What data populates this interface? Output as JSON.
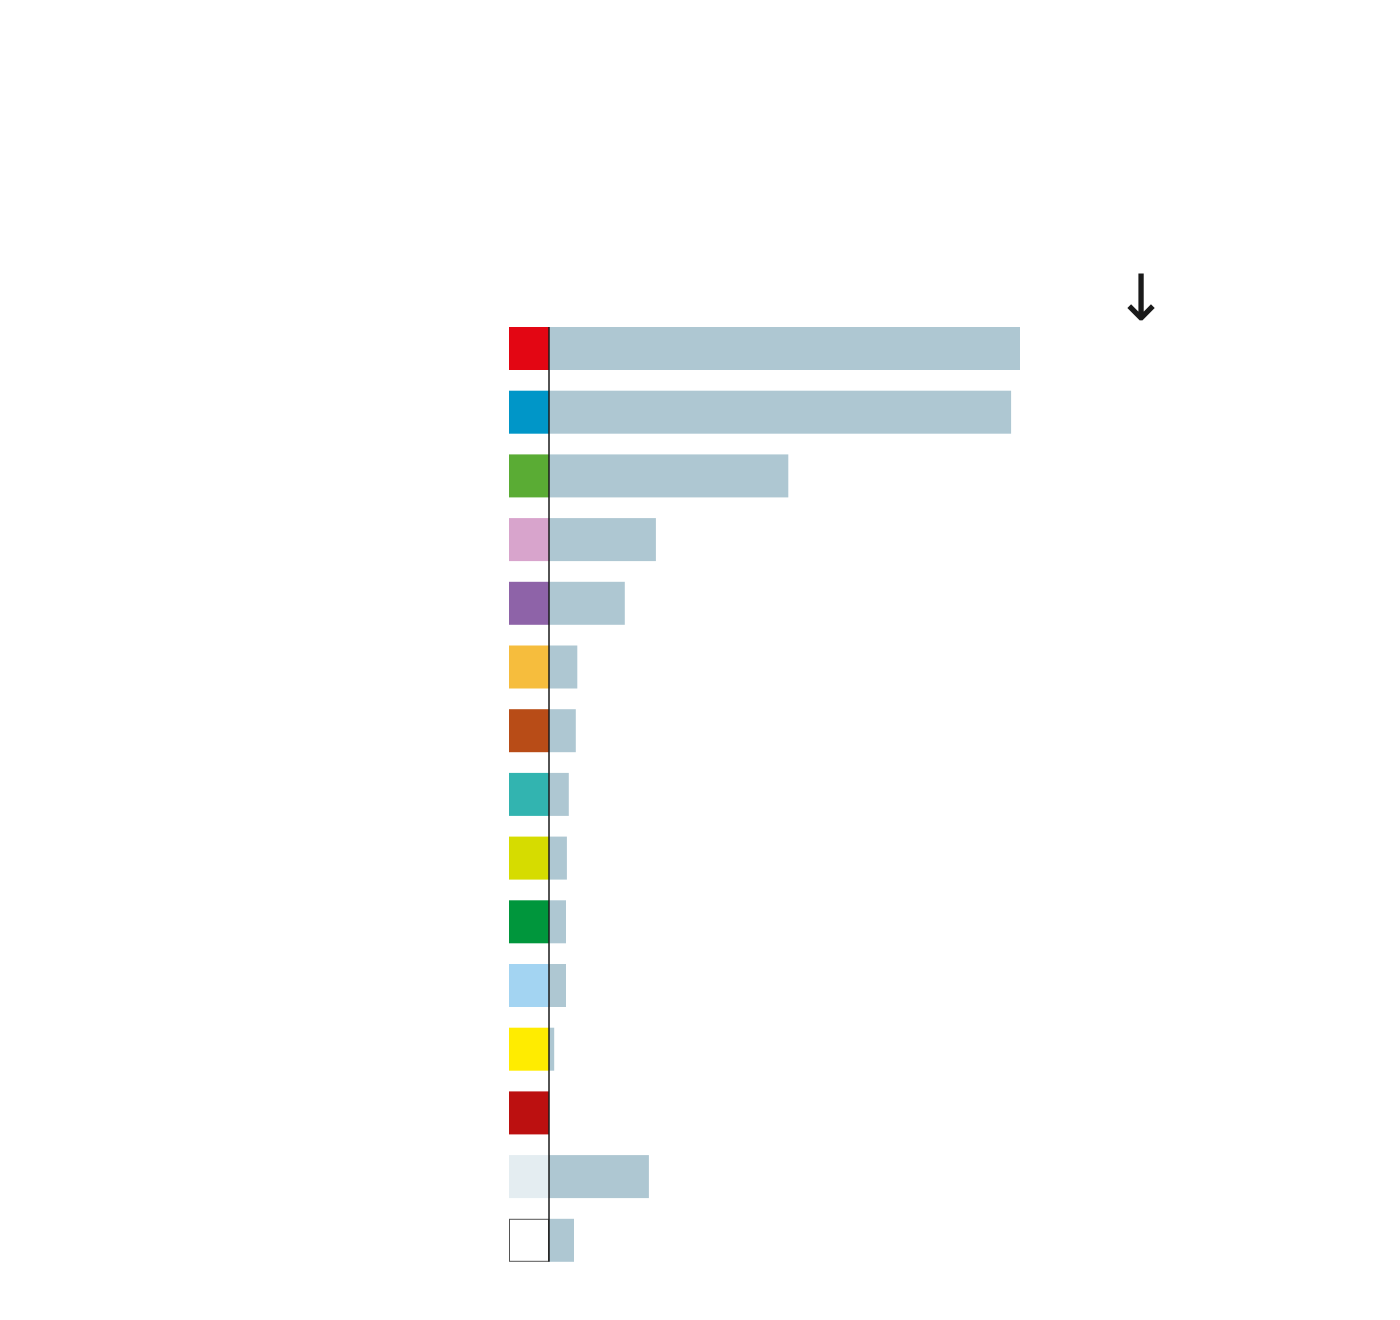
{
  "chart_data": {
    "type": "bar",
    "orientation": "horizontal",
    "categories": [
      "",
      "",
      "",
      "",
      "",
      "",
      "",
      "",
      "",
      "",
      "",
      "",
      "",
      "",
      ""
    ],
    "values": [
      100,
      98.1,
      50.8,
      22.7,
      16.1,
      6.0,
      5.7,
      4.2,
      3.8,
      3.6,
      3.6,
      1.1,
      0,
      21.2,
      5.3
    ],
    "category_colors": [
      "#e30613",
      "#0096c8",
      "#5aac34",
      "#d8a4cc",
      "#8e63a8",
      "#f6bd3d",
      "#b84c17",
      "#32b4b0",
      "#d6dc00",
      "#00963c",
      "#a3d4f2",
      "#ffec00",
      "#bc1010",
      "#e4edf1",
      "#ffffff"
    ],
    "bar_color": "#aec7d2",
    "sort_indicator": "↓",
    "xlim": [
      0,
      100
    ],
    "grid": false,
    "legend": "none",
    "title": "",
    "xlabel": "",
    "ylabel": ""
  }
}
